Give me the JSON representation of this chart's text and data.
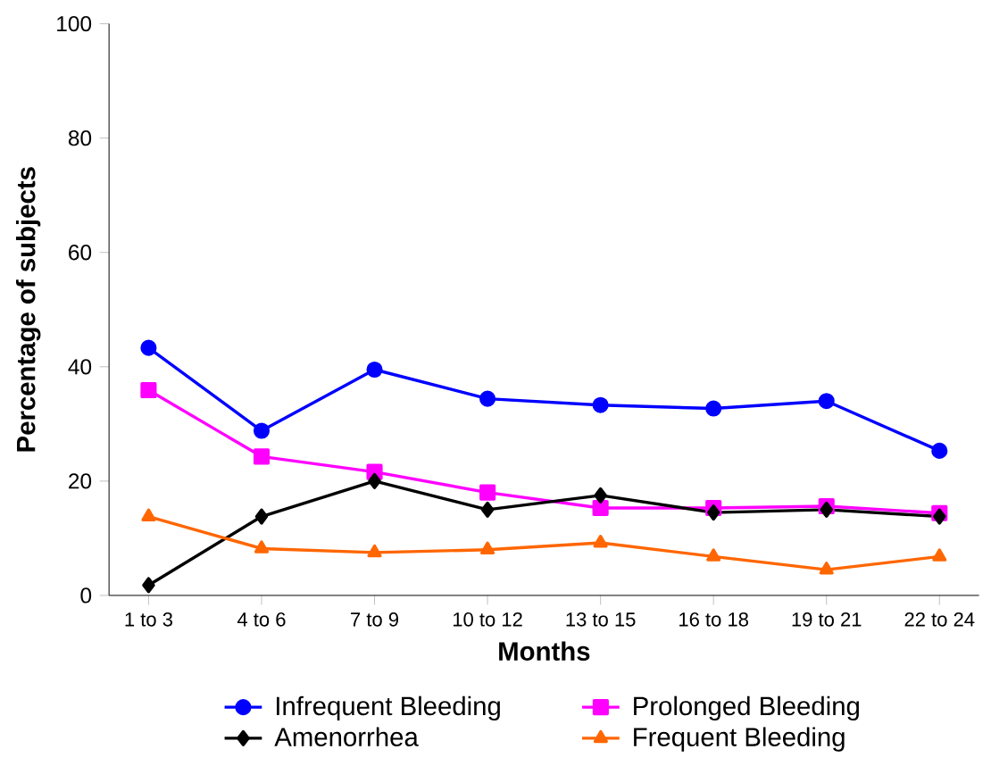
{
  "chart_data": {
    "type": "line",
    "xlabel": "Months",
    "ylabel": "Percentage of subjects",
    "categories": [
      "1 to 3",
      "4 to 6",
      "7 to 9",
      "10 to 12",
      "13 to 15",
      "16 to 18",
      "19 to 21",
      "22 to 24"
    ],
    "series": [
      {
        "name": "Infrequent Bleeding",
        "color": "#0000ff",
        "marker": "circle",
        "values": [
          43.3,
          28.8,
          39.5,
          34.4,
          33.3,
          32.7,
          34,
          25.3
        ]
      },
      {
        "name": "Prolonged Bleeding",
        "color": "#ff00ff",
        "marker": "square",
        "values": [
          35.9,
          24.3,
          21.6,
          18,
          15.3,
          15.3,
          15.6,
          14.4
        ]
      },
      {
        "name": "Amenorrhea",
        "color": "#000000",
        "marker": "diamond",
        "values": [
          1.8,
          13.8,
          20,
          15,
          17.5,
          14.5,
          15,
          13.8
        ]
      },
      {
        "name": "Frequent Bleeding",
        "color": "#ff6600",
        "marker": "triangle",
        "values": [
          13.8,
          8.2,
          7.5,
          8,
          9.2,
          6.8,
          4.5,
          6.8
        ]
      }
    ],
    "ylim": [
      0,
      100
    ],
    "yticks": [
      0,
      20,
      40,
      60,
      80,
      100
    ],
    "grid": false,
    "legend": "bottom"
  }
}
